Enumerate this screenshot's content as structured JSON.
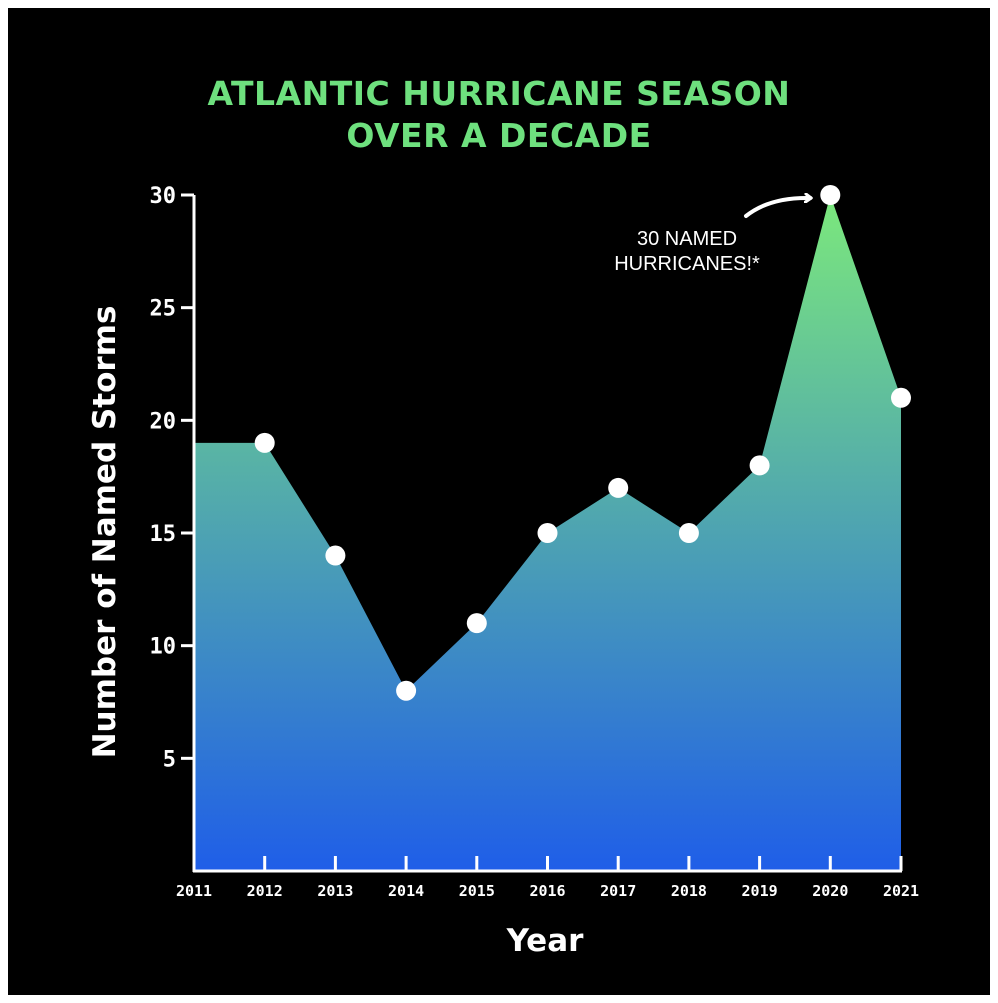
{
  "chart_data": {
    "type": "area",
    "title_lines": [
      "ATLANTIC HURRICANE SEASON",
      "OVER A  DECADE"
    ],
    "xlabel": "Year",
    "ylabel": "Number of Named Storms",
    "x": [
      "2011",
      "2012",
      "2013",
      "2014",
      "2015",
      "2016",
      "2017",
      "2018",
      "2019",
      "2020",
      "2021"
    ],
    "values": [
      19,
      19,
      14,
      8,
      11,
      15,
      17,
      15,
      18,
      30,
      21
    ],
    "markers_start_index": 1,
    "ylim": [
      0,
      30
    ],
    "yticks": [
      5,
      10,
      15,
      20,
      25,
      30
    ],
    "grid": false,
    "annotation": {
      "lines": [
        "30 NAMED",
        "HURRICANES!*"
      ],
      "target_year": "2020"
    },
    "colors": {
      "background": "#000000",
      "title": "#6ee07e",
      "gradient_top": "#7ce87c",
      "gradient_bottom": "#1f5ee8",
      "axis": "#ffffff",
      "marker": "#ffffff"
    }
  }
}
